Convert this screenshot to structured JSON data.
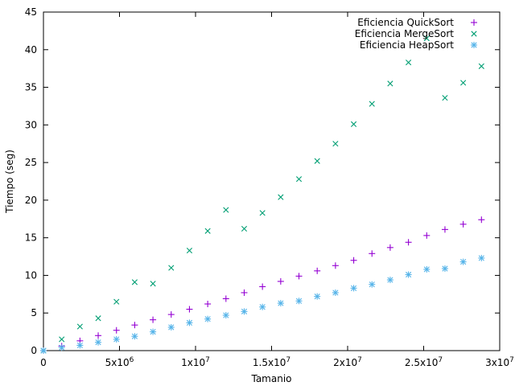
{
  "chart_data": {
    "type": "scatter",
    "title": "",
    "xlabel": "Tamanio",
    "ylabel": "Tiempo (seg)",
    "xlim": [
      0,
      30000000
    ],
    "ylim": [
      0,
      45
    ],
    "legend_position": "top-right",
    "grid": false,
    "x_ticks": [
      {
        "value": 0,
        "label": "0",
        "sup": ""
      },
      {
        "value": 5000000,
        "label": "5x10",
        "sup": "6"
      },
      {
        "value": 10000000,
        "label": "1x10",
        "sup": "7"
      },
      {
        "value": 15000000,
        "label": "1.5x10",
        "sup": "7"
      },
      {
        "value": 20000000,
        "label": "2x10",
        "sup": "7"
      },
      {
        "value": 25000000,
        "label": "2.5x10",
        "sup": "7"
      },
      {
        "value": 30000000,
        "label": "3x10",
        "sup": "7"
      }
    ],
    "y_ticks": [
      0,
      5,
      10,
      15,
      20,
      25,
      30,
      35,
      40,
      45
    ],
    "x": [
      0,
      1200000,
      2400000,
      3600000,
      4800000,
      6000000,
      7200000,
      8400000,
      9600000,
      10800000,
      12000000,
      13200000,
      14400000,
      15600000,
      16800000,
      18000000,
      19200000,
      20400000,
      21600000,
      22800000,
      24000000,
      25200000,
      26400000,
      27600000,
      28800000
    ],
    "series": [
      {
        "name": "Eficiencia QuickSort",
        "marker": "plus",
        "color": "#9400d3",
        "values": [
          0,
          0.6,
          1.3,
          2.0,
          2.7,
          3.4,
          4.1,
          4.8,
          5.5,
          6.2,
          6.9,
          7.7,
          8.5,
          9.2,
          9.9,
          10.6,
          11.3,
          12.0,
          12.9,
          13.7,
          14.4,
          15.3,
          16.1,
          16.8,
          17.4
        ]
      },
      {
        "name": "Eficiencia MergeSort",
        "marker": "cross",
        "color": "#009e73",
        "values": [
          0,
          1.5,
          3.2,
          4.3,
          6.5,
          9.1,
          8.9,
          11.0,
          13.3,
          15.9,
          18.7,
          16.2,
          18.3,
          20.4,
          22.8,
          25.2,
          27.5,
          30.1,
          32.8,
          35.5,
          38.3,
          41.5,
          33.6,
          35.6,
          37.8
        ]
      },
      {
        "name": "Eficiencia HeapSort",
        "marker": "star",
        "color": "#56b4e9",
        "values": [
          0,
          0.4,
          0.7,
          1.1,
          1.5,
          1.9,
          2.5,
          3.1,
          3.7,
          4.2,
          4.7,
          5.2,
          5.8,
          6.3,
          6.6,
          7.2,
          7.7,
          8.3,
          8.8,
          9.4,
          10.1,
          10.8,
          10.9,
          11.8,
          12.3
        ]
      }
    ]
  }
}
